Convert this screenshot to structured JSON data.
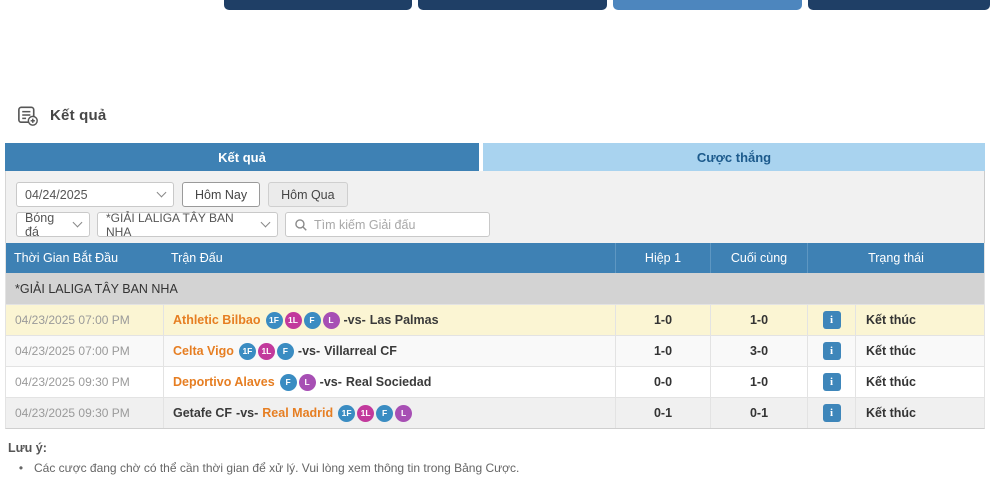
{
  "top_nav": {
    "buttons": [
      {
        "name": "nav-button-1",
        "color": "#1f3f66"
      },
      {
        "name": "nav-button-2",
        "color": "#1f3f66"
      },
      {
        "name": "nav-button-3",
        "color": "#4d86be"
      },
      {
        "name": "nav-button-4",
        "color": "#1f3f66"
      }
    ]
  },
  "page": {
    "title": "Kết quả"
  },
  "tabs": [
    {
      "label": "Kết quả",
      "active": true
    },
    {
      "label": "Cược thắng",
      "active": false
    }
  ],
  "filters": {
    "date_value": "04/24/2025",
    "today_label": "Hôm Nay",
    "yesterday_label": "Hôm Qua",
    "sport_value": "Bóng đá",
    "league_value": "*GIẢI LALIGA TÂY BAN NHA",
    "search_placeholder": "Tìm kiếm Giải đấu"
  },
  "table": {
    "columns": {
      "time": "Thời Gian Bắt Đầu",
      "match": "Trận Đấu",
      "half1": "Hiệp 1",
      "final": "Cuối cùng",
      "status": "Trạng thái"
    },
    "group_label": "*GIẢI LALIGA TÂY BAN NHA",
    "vs_label": "-vs-",
    "badge_colors": {
      "1F": "#3a8cc2",
      "1L": "#c2399c",
      "F": "#3a8cc2",
      "L": "#a74fb4"
    },
    "rows": [
      {
        "time": "04/23/2025 07:00 PM",
        "home": "Athletic Bilbao",
        "home_fav": true,
        "home_badges": [
          "1F",
          "1L",
          "F",
          "L"
        ],
        "away": "Las Palmas",
        "away_fav": false,
        "away_badges": [],
        "half1": "1-0",
        "final": "1-0",
        "status": "Kết thúc",
        "bg": "#fbf5d3"
      },
      {
        "time": "04/23/2025 07:00 PM",
        "home": "Celta Vigo",
        "home_fav": true,
        "home_badges": [
          "1F",
          "1L",
          "F"
        ],
        "away": "Villarreal CF",
        "away_fav": false,
        "away_badges": [],
        "half1": "1-0",
        "final": "3-0",
        "status": "Kết thúc",
        "bg": "#f9f9f9"
      },
      {
        "time": "04/23/2025 09:30 PM",
        "home": "Deportivo Alaves",
        "home_fav": true,
        "home_badges": [
          "F",
          "L"
        ],
        "away": "Real Sociedad",
        "away_fav": false,
        "away_badges": [],
        "half1": "0-0",
        "final": "1-0",
        "status": "Kết thúc",
        "bg": "#ffffff"
      },
      {
        "time": "04/23/2025 09:30 PM",
        "home": "Getafe CF",
        "home_fav": false,
        "home_badges": [],
        "away": "Real Madrid",
        "away_fav": true,
        "away_badges": [
          "1F",
          "1L",
          "F",
          "L"
        ],
        "half1": "0-1",
        "final": "0-1",
        "status": "Kết thúc",
        "bg": "#f0f0f0"
      }
    ],
    "info_icon": "i"
  },
  "notes": {
    "title": "Lưu ý:",
    "items": [
      "Các cược đang chờ có thể cần thời gian để xử lý. Vui lòng xem thông tin trong Bảng Cược."
    ]
  },
  "colors": {
    "accent_blue": "#3e81b4",
    "tab_inactive_bg": "#a9d3ef",
    "group_row_bg": "#d3d3d3",
    "highlight_row_bg": "#fbf5d3",
    "favorite_team_text": "#e67e22"
  }
}
